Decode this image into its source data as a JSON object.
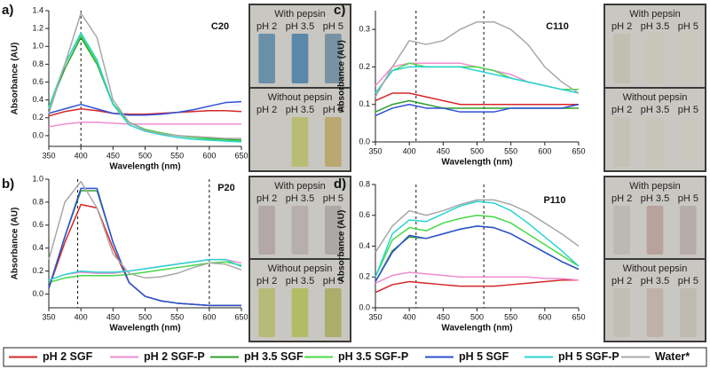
{
  "legend": {
    "entries": [
      {
        "name": "pH 2 SGF",
        "color": "#d62728"
      },
      {
        "name": "pH 2 SGF-P",
        "color": "#f08ccf"
      },
      {
        "name": "pH 3.5 SGF",
        "color": "#2c9f2c"
      },
      {
        "name": "pH 3.5 SGF-P",
        "color": "#47d947"
      },
      {
        "name": "pH 5 SGF",
        "color": "#2f4fd6"
      },
      {
        "name": "pH 5 SGF-P",
        "color": "#29d3d3"
      },
      {
        "name": "Water*",
        "color": "#a8a8a8"
      }
    ]
  },
  "chart_data": [
    {
      "type": "line",
      "panel": "a)",
      "label": "C20",
      "xlabel": "Wavelength (nm)",
      "ylabel": "Absorbance (AU)",
      "x": [
        350,
        375,
        400,
        425,
        450,
        475,
        500,
        525,
        550,
        575,
        600,
        625,
        650
      ],
      "xlim": [
        350,
        650
      ],
      "xticks": [
        350,
        400,
        450,
        500,
        550,
        600,
        650
      ],
      "ylim": [
        -0.12,
        1.4
      ],
      "yticks": [
        {
          "value": 0,
          "label": "0.0"
        },
        0.2,
        0.4,
        0.6,
        0.8,
        {
          "value": 1,
          "label": "1.0"
        },
        1.2,
        1.4
      ],
      "vlines": [
        400
      ],
      "series": [
        {
          "values": [
            0.22,
            0.27,
            0.3,
            0.28,
            0.25,
            0.24,
            0.24,
            0.25,
            0.26,
            0.27,
            0.28,
            0.28,
            0.27
          ]
        },
        {
          "values": [
            0.1,
            0.13,
            0.15,
            0.15,
            0.14,
            0.13,
            0.13,
            0.13,
            0.13,
            0.13,
            0.13,
            0.13,
            0.13
          ]
        },
        {
          "values": [
            0.3,
            0.75,
            1.1,
            0.8,
            0.35,
            0.15,
            0.07,
            0.03,
            0,
            -0.02,
            -0.03,
            -0.04,
            -0.05
          ]
        },
        {
          "values": [
            0.32,
            0.8,
            1.13,
            0.82,
            0.36,
            0.15,
            0.07,
            0.03,
            0,
            -0.02,
            -0.04,
            -0.05,
            -0.06
          ]
        },
        {
          "values": [
            0.25,
            0.3,
            0.35,
            0.3,
            0.25,
            0.23,
            0.23,
            0.24,
            0.26,
            0.29,
            0.33,
            0.37,
            0.38
          ]
        },
        {
          "values": [
            0.3,
            0.8,
            1.15,
            0.85,
            0.35,
            0.12,
            0.05,
            0.01,
            -0.02,
            -0.04,
            -0.05,
            -0.06,
            -0.07
          ]
        },
        {
          "values": [
            0.25,
            0.8,
            1.37,
            1.1,
            0.4,
            0.15,
            0.06,
            0.02,
            0,
            -0.01,
            -0.02,
            -0.03,
            -0.03
          ]
        }
      ],
      "photo": {
        "groups": [
          {
            "title": "With pepsin",
            "vials": [
              "pH 2",
              "pH 3.5",
              "pH 5"
            ]
          },
          {
            "title": "Without pepsin",
            "vials": [
              "pH 2",
              "pH 3.5",
              "pH 5"
            ]
          }
        ]
      }
    },
    {
      "type": "line",
      "panel": "b)",
      "label": "P20",
      "xlabel": "Wavelength (nm)",
      "ylabel": "Absorbance (AU)",
      "x": [
        350,
        375,
        400,
        425,
        450,
        475,
        500,
        525,
        550,
        575,
        600,
        625,
        650
      ],
      "xlim": [
        350,
        650
      ],
      "xticks": [
        350,
        400,
        450,
        500,
        550,
        600,
        650
      ],
      "ylim": [
        -0.12,
        1.0
      ],
      "yticks": [
        {
          "value": 0,
          "label": "0.0"
        },
        0.2,
        0.4,
        0.6,
        0.8,
        {
          "value": 1,
          "label": "1.0"
        }
      ],
      "vlines": [
        395,
        600
      ],
      "series": [
        {
          "values": [
            0.05,
            0.45,
            0.78,
            0.75,
            0.4,
            0.1,
            -0.02,
            -0.06,
            -0.08,
            -0.09,
            -0.1,
            -0.1,
            -0.1
          ]
        },
        {
          "values": [
            0.12,
            0.17,
            0.19,
            0.18,
            0.18,
            0.2,
            0.22,
            0.24,
            0.26,
            0.28,
            0.3,
            0.3,
            0.27
          ]
        },
        {
          "values": [
            0.05,
            0.5,
            0.9,
            0.9,
            0.45,
            0.1,
            -0.02,
            -0.06,
            -0.08,
            -0.09,
            -0.1,
            -0.1,
            -0.1
          ]
        },
        {
          "values": [
            0.1,
            0.14,
            0.16,
            0.16,
            0.16,
            0.17,
            0.19,
            0.21,
            0.23,
            0.25,
            0.27,
            0.28,
            0.25
          ]
        },
        {
          "values": [
            0.05,
            0.5,
            0.92,
            0.92,
            0.45,
            0.1,
            -0.02,
            -0.06,
            -0.08,
            -0.09,
            -0.1,
            -0.1,
            -0.1
          ]
        },
        {
          "values": [
            0.12,
            0.17,
            0.2,
            0.19,
            0.19,
            0.2,
            0.22,
            0.24,
            0.26,
            0.28,
            0.3,
            0.3,
            0.24
          ]
        },
        {
          "values": [
            0.3,
            0.8,
            0.98,
            0.75,
            0.35,
            0.18,
            0.14,
            0.15,
            0.18,
            0.23,
            0.27,
            0.26,
            0.21
          ]
        }
      ],
      "photo": {
        "groups": [
          {
            "title": "With pepsin",
            "vials": [
              "pH 2",
              "pH 3.5",
              "pH 5"
            ]
          },
          {
            "title": "Without pepsin",
            "vials": [
              "pH 2",
              "pH 3.5",
              "pH 5"
            ]
          }
        ]
      }
    },
    {
      "type": "line",
      "panel": "c)",
      "label": "C110",
      "xlabel": "Wavelength (nm)",
      "ylabel": "Absorbance (AU)",
      "x": [
        350,
        375,
        400,
        425,
        450,
        475,
        500,
        525,
        550,
        575,
        600,
        625,
        650
      ],
      "xlim": [
        350,
        650
      ],
      "xticks": [
        350,
        400,
        450,
        500,
        550,
        600,
        650
      ],
      "ylim": [
        0,
        0.35
      ],
      "yticks": [
        {
          "value": 0,
          "label": "0.0"
        },
        0.1,
        0.2,
        0.3
      ],
      "vlines": [
        410,
        510
      ],
      "series": [
        {
          "values": [
            0.11,
            0.13,
            0.13,
            0.12,
            0.11,
            0.1,
            0.1,
            0.1,
            0.1,
            0.1,
            0.1,
            0.1,
            0.1
          ]
        },
        {
          "values": [
            0.15,
            0.2,
            0.21,
            0.21,
            0.21,
            0.21,
            0.2,
            0.19,
            0.18,
            0.16,
            0.15,
            0.14,
            0.14
          ]
        },
        {
          "values": [
            0.08,
            0.1,
            0.11,
            0.1,
            0.09,
            0.09,
            0.09,
            0.09,
            0.09,
            0.09,
            0.09,
            0.09,
            0.09
          ]
        },
        {
          "values": [
            0.13,
            0.19,
            0.21,
            0.2,
            0.2,
            0.2,
            0.2,
            0.19,
            0.17,
            0.16,
            0.15,
            0.14,
            0.14
          ]
        },
        {
          "values": [
            0.07,
            0.09,
            0.1,
            0.09,
            0.09,
            0.08,
            0.08,
            0.08,
            0.09,
            0.09,
            0.09,
            0.09,
            0.1
          ]
        },
        {
          "values": [
            0.13,
            0.19,
            0.2,
            0.2,
            0.2,
            0.2,
            0.19,
            0.18,
            0.17,
            0.16,
            0.15,
            0.14,
            0.13
          ]
        },
        {
          "values": [
            0.12,
            0.2,
            0.27,
            0.26,
            0.27,
            0.3,
            0.32,
            0.32,
            0.3,
            0.26,
            0.2,
            0.16,
            0.13
          ]
        }
      ],
      "photo": {
        "groups": [
          {
            "title": "With pepsin",
            "vials": [
              "pH 2",
              "pH 3.5",
              "pH 5"
            ]
          },
          {
            "title": "Without pepsin",
            "vials": [
              "pH 2",
              "pH 3.5",
              "pH 5"
            ]
          }
        ]
      }
    },
    {
      "type": "line",
      "panel": "d)",
      "label": "P110",
      "xlabel": "Wavelength (nm)",
      "ylabel": "Absorbance (AU)",
      "x": [
        350,
        375,
        400,
        425,
        450,
        475,
        500,
        525,
        550,
        575,
        600,
        625,
        650
      ],
      "xlim": [
        350,
        650
      ],
      "xticks": [
        350,
        400,
        450,
        500,
        550,
        600,
        650
      ],
      "ylim": [
        0,
        0.8
      ],
      "yticks": [
        {
          "value": 0,
          "label": "0.0"
        },
        0.2,
        0.4,
        0.6,
        0.8
      ],
      "vlines": [
        410,
        510
      ],
      "series": [
        {
          "values": [
            0.1,
            0.15,
            0.17,
            0.16,
            0.15,
            0.14,
            0.14,
            0.14,
            0.15,
            0.16,
            0.17,
            0.18,
            0.18
          ]
        },
        {
          "values": [
            0.16,
            0.21,
            0.23,
            0.22,
            0.21,
            0.2,
            0.2,
            0.2,
            0.2,
            0.2,
            0.19,
            0.19,
            0.18
          ]
        },
        {
          "values": [
            0.17,
            0.37,
            0.46,
            0.45,
            0.48,
            0.51,
            0.53,
            0.52,
            0.48,
            0.42,
            0.36,
            0.3,
            0.25
          ]
        },
        {
          "values": [
            0.2,
            0.44,
            0.52,
            0.5,
            0.55,
            0.58,
            0.6,
            0.59,
            0.55,
            0.48,
            0.41,
            0.34,
            0.27
          ]
        },
        {
          "values": [
            0.17,
            0.36,
            0.47,
            0.45,
            0.48,
            0.51,
            0.53,
            0.52,
            0.48,
            0.42,
            0.36,
            0.3,
            0.25
          ]
        },
        {
          "values": [
            0.2,
            0.48,
            0.57,
            0.56,
            0.61,
            0.66,
            0.69,
            0.68,
            0.63,
            0.55,
            0.46,
            0.37,
            0.27
          ]
        },
        {
          "values": [
            0.36,
            0.53,
            0.63,
            0.6,
            0.63,
            0.67,
            0.7,
            0.7,
            0.67,
            0.62,
            0.55,
            0.48,
            0.4
          ]
        }
      ],
      "photo": {
        "groups": [
          {
            "title": "With pepsin",
            "vials": [
              "pH 2",
              "pH 3.5",
              "pH 5"
            ]
          },
          {
            "title": "Without pepsin",
            "vials": [
              "pH 2",
              "pH 3.5",
              "pH 5"
            ]
          }
        ]
      }
    }
  ]
}
